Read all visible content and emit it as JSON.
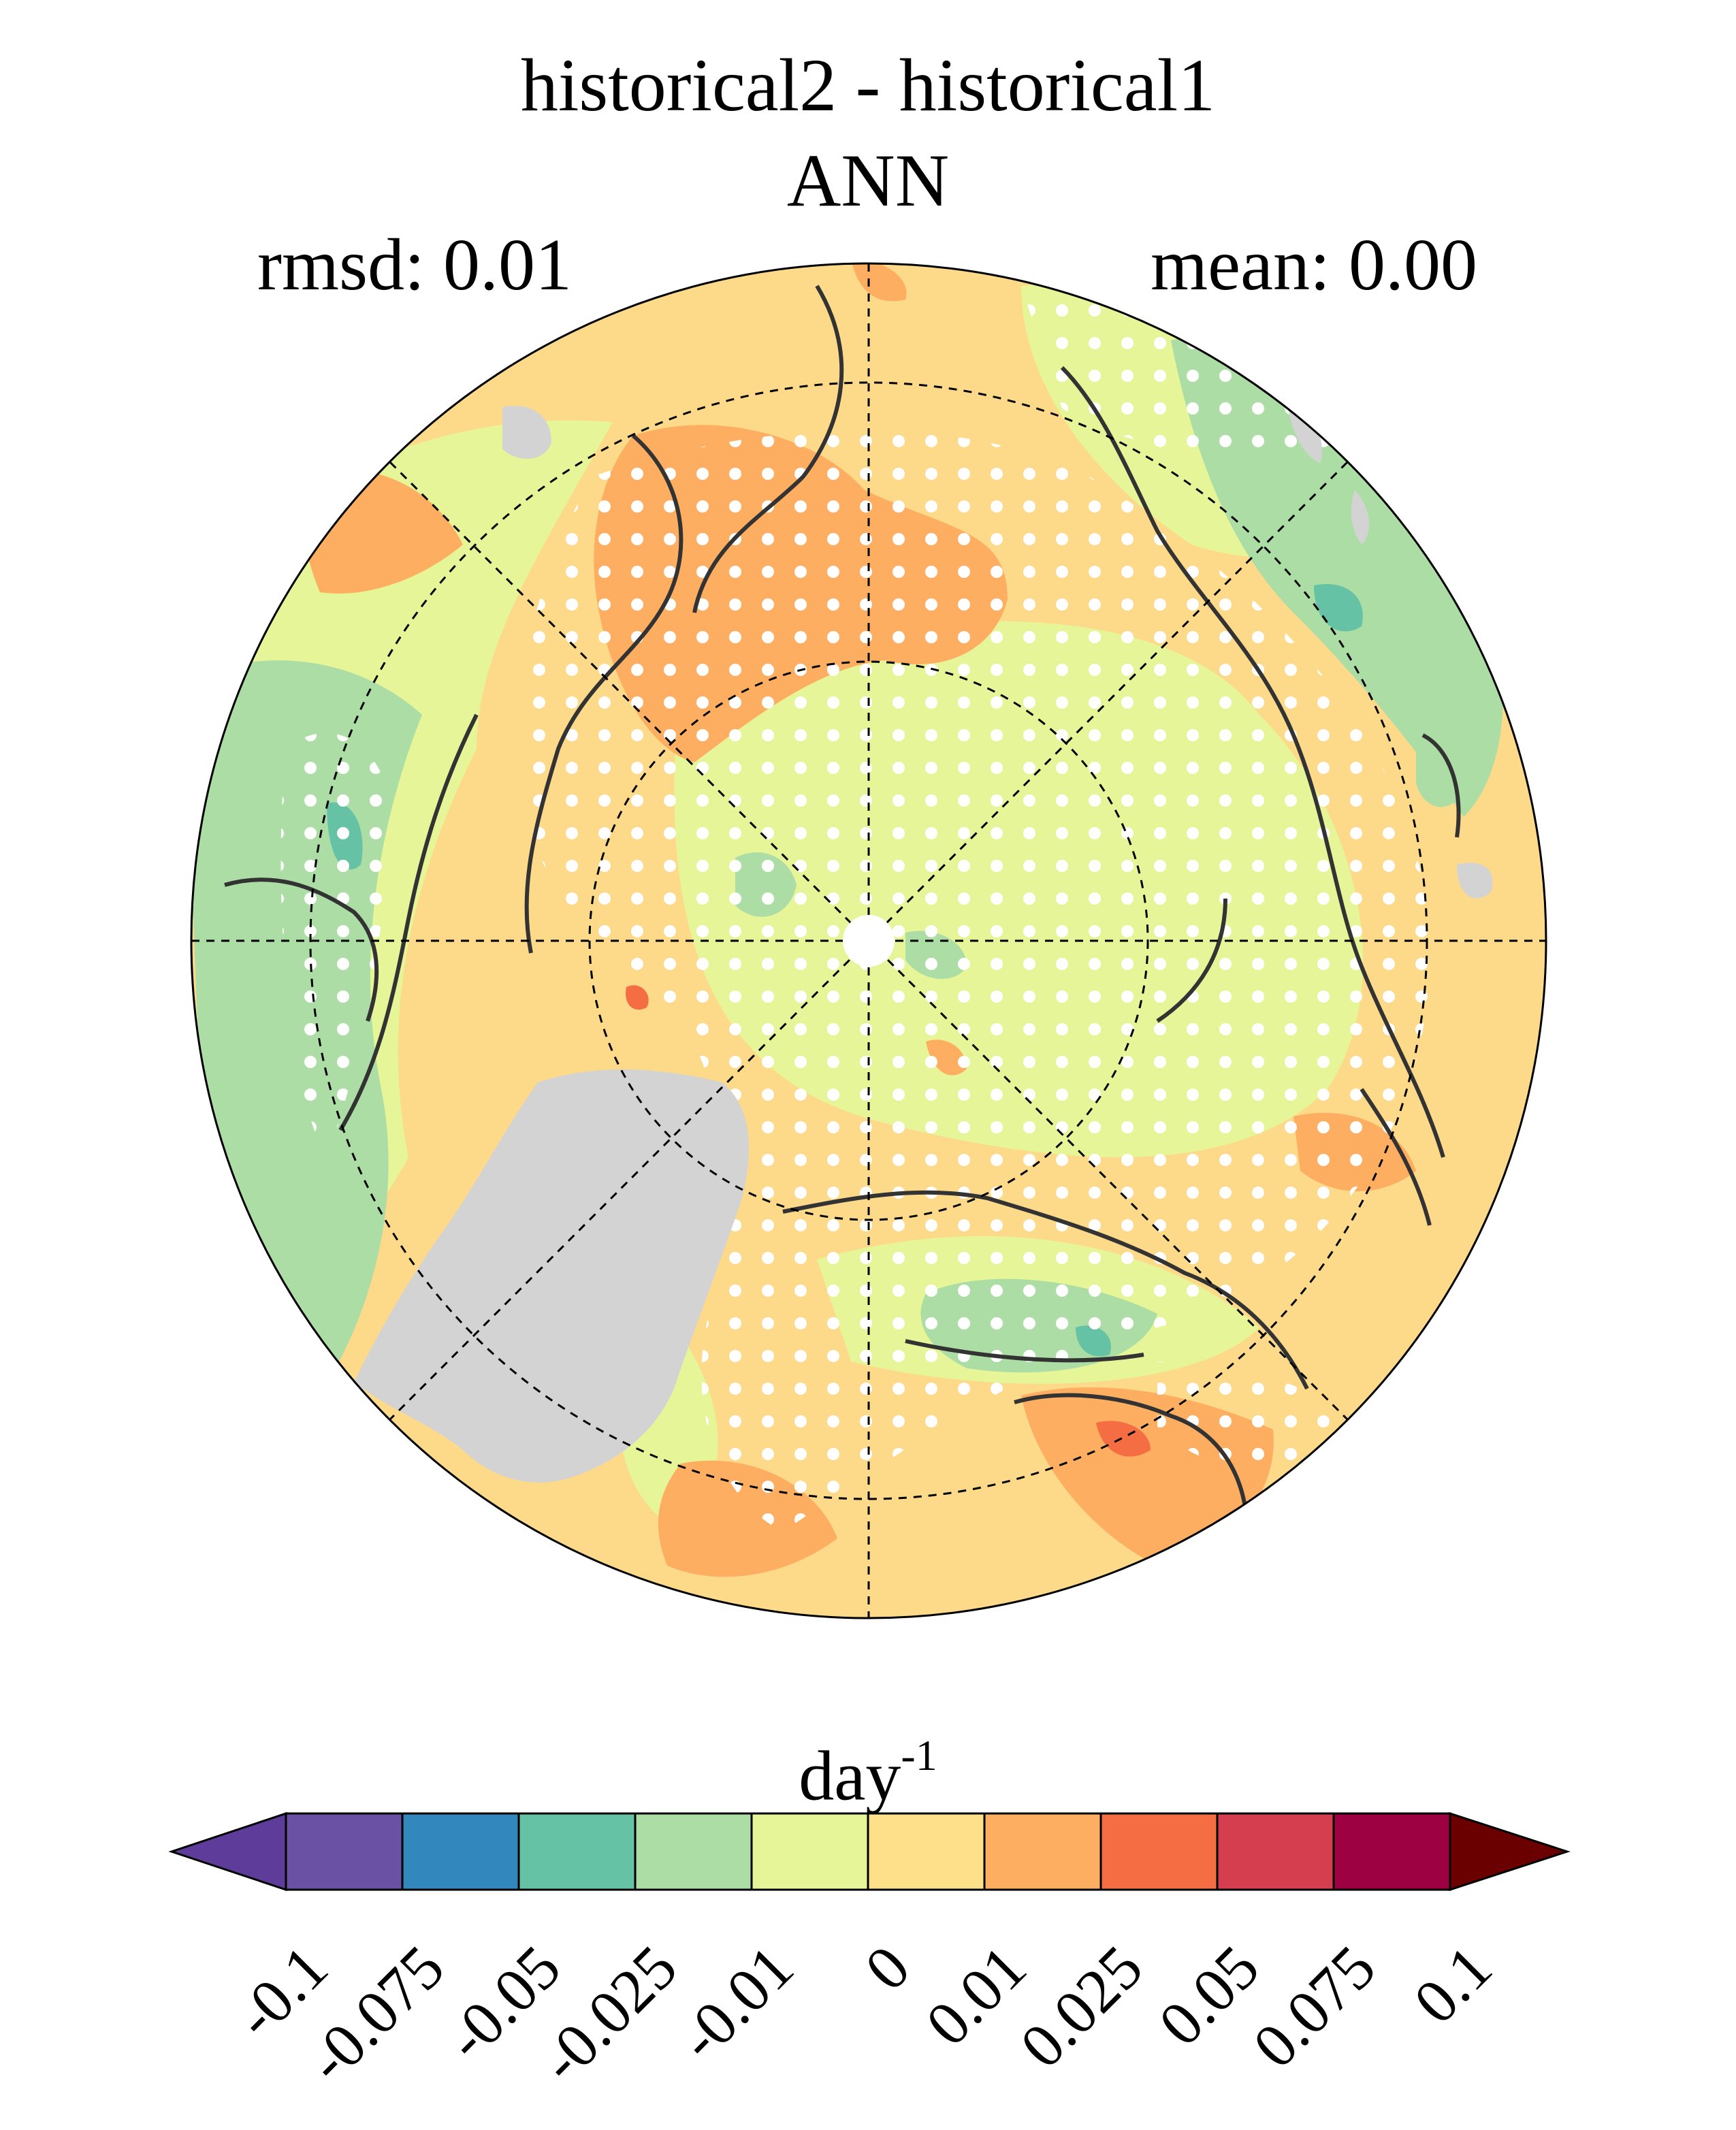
{
  "title": {
    "line1": "historical2 - historical1",
    "line2": "ANN"
  },
  "stats": {
    "rmsd_label": "rmsd: 0.01",
    "mean_label": "mean: 0.00"
  },
  "map": {
    "projection": "north-polar-stereographic",
    "land_mask_color": "#d3d3d3",
    "stippling": "white dots",
    "background_fill": "#fdd98a"
  },
  "colorbar": {
    "units_base": "day",
    "units_exponent": "-1",
    "tick_labels": [
      "-0.1",
      "-0.075",
      "-0.05",
      "-0.025",
      "-0.01",
      "0",
      "0.01",
      "0.025",
      "0.05",
      "0.075",
      "0.1"
    ],
    "colors": [
      "#5e3c99",
      "#6a51a3",
      "#3288bd",
      "#66c2a5",
      "#abdda4",
      "#e6f598",
      "#fee08b",
      "#fdae61",
      "#f46d43",
      "#d53e4f",
      "#9e0142",
      "#6b0000"
    ]
  }
}
